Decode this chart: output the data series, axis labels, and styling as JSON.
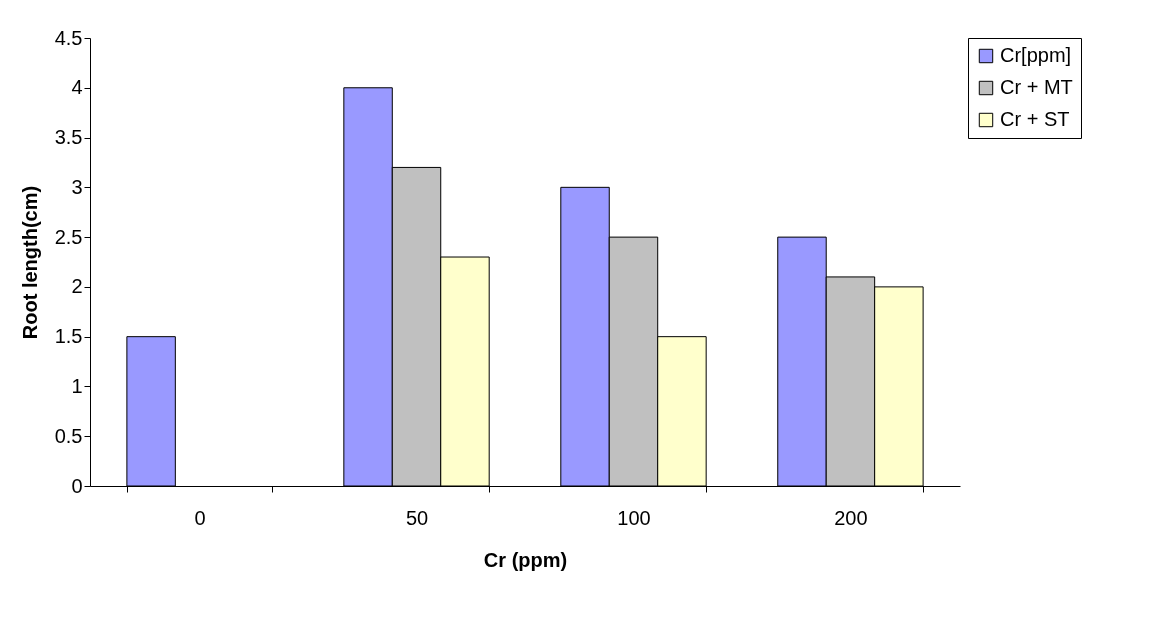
{
  "chart_data": {
    "type": "bar",
    "xlabel": "Cr (ppm)",
    "ylabel": "Root length(cm)",
    "categories": [
      "0",
      "50",
      "100",
      "200"
    ],
    "series": [
      {
        "name": "Cr[ppm]",
        "color": "#9999ff",
        "values": [
          1.5,
          4,
          3,
          2.5
        ]
      },
      {
        "name": "Cr + MT",
        "color": "#c0c0c0",
        "values": [
          null,
          3.2,
          2.5,
          2.1
        ]
      },
      {
        "name": "Cr + ST",
        "color": "#ffffcc",
        "values": [
          null,
          2.3,
          1.5,
          2.0
        ]
      }
    ],
    "ylim": [
      0,
      4.5
    ],
    "yticks": [
      0,
      0.5,
      1,
      1.5,
      2,
      2.5,
      3,
      3.5,
      4,
      4.5
    ],
    "grid": false,
    "legend": "right"
  }
}
